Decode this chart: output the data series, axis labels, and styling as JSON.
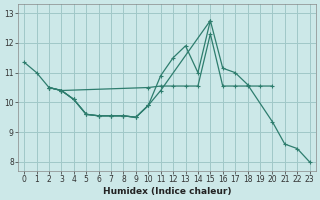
{
  "xlabel": "Humidex (Indice chaleur)",
  "bg_color": "#cce8e8",
  "line_color": "#2e7d6e",
  "grid_color": "#a0c8c8",
  "xlim": [
    -0.5,
    23.5
  ],
  "ylim": [
    7.7,
    13.3
  ],
  "yticks": [
    8,
    9,
    10,
    11,
    12,
    13
  ],
  "xticks": [
    0,
    1,
    2,
    3,
    4,
    5,
    6,
    7,
    8,
    9,
    10,
    11,
    12,
    13,
    14,
    15,
    16,
    17,
    18,
    19,
    20,
    21,
    22,
    23
  ],
  "line1_x": [
    0,
    1,
    2,
    3,
    4,
    5,
    6,
    7,
    8,
    9,
    10,
    11,
    15,
    16,
    17,
    18,
    20,
    21,
    22,
    23
  ],
  "line1_y": [
    11.35,
    11.0,
    10.5,
    10.4,
    10.1,
    9.6,
    9.55,
    9.55,
    9.55,
    9.5,
    9.9,
    10.4,
    12.75,
    11.15,
    11.0,
    10.6,
    9.35,
    8.6,
    8.45,
    8.0
  ],
  "line2_x": [
    2,
    3,
    10,
    11,
    12,
    13,
    14,
    15,
    16,
    17,
    18,
    19,
    20
  ],
  "line2_y": [
    10.5,
    10.4,
    10.5,
    10.55,
    10.55,
    10.55,
    10.55,
    12.3,
    10.55,
    10.55,
    10.55,
    10.55,
    10.55
  ],
  "line3_x": [
    2,
    3,
    4,
    5,
    6,
    7,
    8,
    9,
    10,
    11,
    12,
    13,
    14,
    15
  ],
  "line3_y": [
    10.5,
    10.4,
    10.1,
    9.6,
    9.55,
    9.55,
    9.55,
    9.5,
    9.9,
    10.9,
    11.5,
    11.9,
    11.0,
    12.75
  ],
  "line4_x": [
    2,
    3,
    4,
    5,
    6,
    7,
    8,
    9,
    10
  ],
  "line4_y": [
    10.5,
    10.4,
    10.1,
    9.6,
    9.55,
    9.55,
    9.55,
    9.5,
    9.9
  ]
}
